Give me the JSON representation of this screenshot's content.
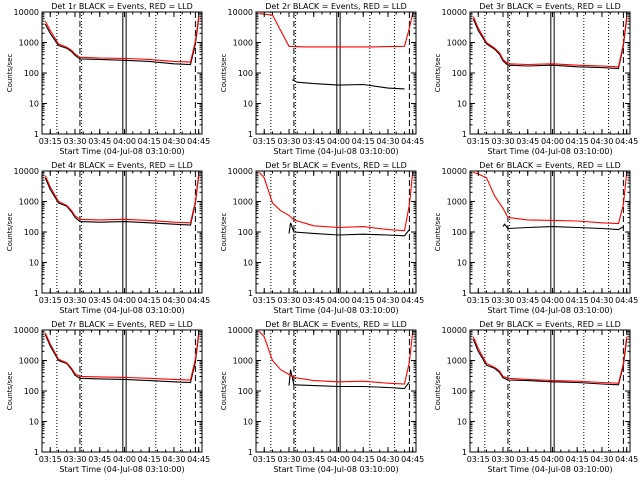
{
  "colors": {
    "background": "#ffffff",
    "events": "#000000",
    "lld": "#ff0000",
    "axes": "#000000"
  },
  "chart_data": [
    {
      "type": "line",
      "title": "Det 1r BLACK = Events, RED = LLD",
      "xlabel": "Start Time (04-Jul-08 03:10:00)",
      "ylabel": "Counts/sec",
      "y_scale": "log",
      "ylim": [
        1,
        10000
      ],
      "y_ticks": [
        "1",
        "10",
        "100",
        "1000",
        "10000"
      ],
      "x_ticks": [
        "03:15",
        "03:30",
        "03:45",
        "04:00",
        "04:15",
        "04:30",
        "04:45"
      ],
      "series": [
        {
          "name": "Events",
          "color": "#000000",
          "x": [
            "03:12",
            "03:15",
            "03:20",
            "03:25",
            "03:28",
            "03:30",
            "03:33",
            "03:45",
            "04:00",
            "04:15",
            "04:30",
            "04:40",
            "04:43",
            "04:45"
          ],
          "y": [
            4000,
            2000,
            800,
            650,
            500,
            380,
            290,
            280,
            260,
            240,
            200,
            190,
            900,
            6000
          ]
        },
        {
          "name": "LLD",
          "color": "#ff0000",
          "x": [
            "03:12",
            "03:15",
            "03:20",
            "03:25",
            "03:28",
            "03:30",
            "03:33",
            "03:45",
            "04:00",
            "04:15",
            "04:30",
            "04:40",
            "04:43",
            "04:45"
          ],
          "y": [
            5000,
            2500,
            900,
            700,
            550,
            420,
            330,
            310,
            300,
            280,
            240,
            230,
            1100,
            7000
          ]
        }
      ]
    },
    {
      "type": "line",
      "title": "Det 2r BLACK = Events, RED = LLD",
      "xlabel": "Start Time (04-Jul-08 03:10:00)",
      "ylabel": "Counts/sec",
      "y_scale": "log",
      "ylim": [
        1,
        10000
      ],
      "y_ticks": [
        "1",
        "10",
        "100",
        "1000",
        "10000"
      ],
      "x_ticks": [
        "03:15",
        "03:30",
        "03:45",
        "04:00",
        "04:15",
        "04:30",
        "04:45"
      ],
      "series": [
        {
          "name": "Events",
          "color": "#000000",
          "x": [
            "03:32",
            "03:35",
            "03:45",
            "04:00",
            "04:15",
            "04:30",
            "04:40"
          ],
          "y": [
            60,
            50,
            45,
            40,
            42,
            32,
            30
          ]
        },
        {
          "name": "LLD",
          "color": "#ff0000",
          "x": [
            "03:12",
            "03:15",
            "03:20",
            "03:30",
            "03:40",
            "04:00",
            "04:20",
            "04:40",
            "04:43",
            "04:45"
          ],
          "y": [
            9000,
            8500,
            8000,
            750,
            720,
            720,
            720,
            750,
            3000,
            9000
          ]
        }
      ]
    },
    {
      "type": "line",
      "title": "Det 3r BLACK = Events, RED = LLD",
      "xlabel": "Start Time (04-Jul-08 03:10:00)",
      "ylabel": "Counts/sec",
      "y_scale": "log",
      "ylim": [
        1,
        10000
      ],
      "y_ticks": [
        "1",
        "10",
        "100",
        "1000",
        "10000"
      ],
      "x_ticks": [
        "03:15",
        "03:30",
        "03:45",
        "04:00",
        "04:15",
        "04:30",
        "04:45"
      ],
      "series": [
        {
          "name": "Events",
          "color": "#000000",
          "x": [
            "03:12",
            "03:15",
            "03:20",
            "03:25",
            "03:28",
            "03:30",
            "03:33",
            "03:45",
            "04:00",
            "04:15",
            "04:30",
            "04:40",
            "04:43",
            "04:45"
          ],
          "y": [
            6000,
            2500,
            900,
            600,
            400,
            250,
            180,
            170,
            180,
            160,
            150,
            140,
            800,
            6000
          ]
        },
        {
          "name": "LLD",
          "color": "#ff0000",
          "x": [
            "03:12",
            "03:15",
            "03:20",
            "03:25",
            "03:28",
            "03:30",
            "03:33",
            "03:45",
            "04:00",
            "04:15",
            "04:30",
            "04:40",
            "04:43",
            "04:45"
          ],
          "y": [
            7000,
            3000,
            1000,
            650,
            450,
            280,
            200,
            190,
            200,
            180,
            170,
            160,
            900,
            7000
          ]
        }
      ]
    },
    {
      "type": "line",
      "title": "Det 4r BLACK = Events, RED = LLD",
      "xlabel": "Start Time (04-Jul-08 03:10:00)",
      "ylabel": "Counts/sec",
      "y_scale": "log",
      "ylim": [
        1,
        10000
      ],
      "y_ticks": [
        "1",
        "10",
        "100",
        "1000",
        "10000"
      ],
      "x_ticks": [
        "03:15",
        "03:30",
        "03:45",
        "04:00",
        "04:15",
        "04:30",
        "04:45"
      ],
      "series": [
        {
          "name": "Events",
          "color": "#000000",
          "x": [
            "03:12",
            "03:15",
            "03:20",
            "03:25",
            "03:28",
            "03:30",
            "03:33",
            "03:45",
            "04:00",
            "04:15",
            "04:30",
            "04:40",
            "04:43",
            "04:45"
          ],
          "y": [
            6000,
            2500,
            900,
            700,
            450,
            300,
            220,
            210,
            220,
            200,
            180,
            170,
            900,
            7000
          ]
        },
        {
          "name": "LLD",
          "color": "#ff0000",
          "x": [
            "03:12",
            "03:15",
            "03:20",
            "03:25",
            "03:28",
            "03:30",
            "03:33",
            "03:45",
            "04:00",
            "04:15",
            "04:30",
            "04:40",
            "04:43",
            "04:45"
          ],
          "y": [
            7000,
            3000,
            1000,
            750,
            500,
            340,
            260,
            250,
            260,
            240,
            210,
            200,
            1000,
            8000
          ]
        }
      ]
    },
    {
      "type": "line",
      "title": "Det 5r BLACK = Events, RED = LLD",
      "xlabel": "Start Time (04-Jul-08 03:10:00)",
      "ylabel": "Counts/sec",
      "y_scale": "log",
      "ylim": [
        1,
        10000
      ],
      "y_ticks": [
        "1",
        "10",
        "100",
        "1000",
        "10000"
      ],
      "x_ticks": [
        "03:15",
        "03:30",
        "03:45",
        "04:00",
        "04:15",
        "04:30",
        "04:45"
      ],
      "series": [
        {
          "name": "Events",
          "color": "#000000",
          "x": [
            "03:30",
            "03:31",
            "03:33",
            "03:45",
            "04:00",
            "04:15",
            "04:30",
            "04:40",
            "04:43"
          ],
          "y": [
            90,
            200,
            100,
            90,
            80,
            85,
            80,
            75,
            120
          ]
        },
        {
          "name": "LLD",
          "color": "#ff0000",
          "x": [
            "03:12",
            "03:15",
            "03:20",
            "03:25",
            "03:30",
            "03:33",
            "03:45",
            "04:00",
            "04:15",
            "04:30",
            "04:40",
            "04:43",
            "04:45"
          ],
          "y": [
            9000,
            6000,
            900,
            500,
            350,
            250,
            160,
            140,
            150,
            120,
            110,
            800,
            9000
          ]
        }
      ]
    },
    {
      "type": "line",
      "title": "Det 6r BLACK = Events, RED = LLD",
      "xlabel": "Start Time (04-Jul-08 03:10:00)",
      "ylabel": "Counts/sec",
      "y_scale": "log",
      "ylim": [
        1,
        10000
      ],
      "y_ticks": [
        "1",
        "10",
        "100",
        "1000",
        "10000"
      ],
      "x_ticks": [
        "03:15",
        "03:30",
        "03:45",
        "04:00",
        "04:15",
        "04:30",
        "04:45"
      ],
      "series": [
        {
          "name": "Events",
          "color": "#000000",
          "x": [
            "03:30",
            "03:31",
            "03:33",
            "03:45",
            "04:00",
            "04:15",
            "04:30",
            "04:40",
            "04:43"
          ],
          "y": [
            150,
            180,
            130,
            140,
            150,
            140,
            130,
            120,
            150
          ]
        },
        {
          "name": "LLD",
          "color": "#ff0000",
          "x": [
            "03:12",
            "03:15",
            "03:20",
            "03:25",
            "03:30",
            "03:33",
            "03:45",
            "04:00",
            "04:15",
            "04:30",
            "04:40",
            "04:43",
            "04:45"
          ],
          "y": [
            9000,
            8000,
            6000,
            1500,
            600,
            300,
            250,
            240,
            230,
            200,
            190,
            800,
            9000
          ]
        }
      ]
    },
    {
      "type": "line",
      "title": "Det 7r BLACK = Events, RED = LLD",
      "xlabel": "Start Time (04-Jul-08 03:10:00)",
      "ylabel": "Counts/sec",
      "y_scale": "log",
      "ylim": [
        1,
        10000
      ],
      "y_ticks": [
        "1",
        "10",
        "100",
        "1000",
        "10000"
      ],
      "x_ticks": [
        "03:15",
        "03:30",
        "03:45",
        "04:00",
        "04:15",
        "04:30",
        "04:45"
      ],
      "series": [
        {
          "name": "Events",
          "color": "#000000",
          "x": [
            "03:12",
            "03:15",
            "03:20",
            "03:25",
            "03:28",
            "03:30",
            "03:33",
            "03:45",
            "04:00",
            "04:15",
            "04:30",
            "04:40",
            "04:43",
            "04:45"
          ],
          "y": [
            7000,
            3000,
            1000,
            800,
            500,
            330,
            260,
            250,
            240,
            220,
            200,
            190,
            900,
            7000
          ]
        },
        {
          "name": "LLD",
          "color": "#ff0000",
          "x": [
            "03:12",
            "03:15",
            "03:20",
            "03:25",
            "03:28",
            "03:30",
            "03:33",
            "03:45",
            "04:00",
            "04:15",
            "04:30",
            "04:40",
            "04:43",
            "04:45"
          ],
          "y": [
            8000,
            3500,
            1100,
            850,
            550,
            370,
            300,
            290,
            280,
            260,
            240,
            230,
            1100,
            8000
          ]
        }
      ]
    },
    {
      "type": "line",
      "title": "Det 8r BLACK = Events, RED = LLD",
      "xlabel": "Start Time (04-Jul-08 03:10:00)",
      "ylabel": "Counts/sec",
      "y_scale": "log",
      "ylim": [
        1,
        10000
      ],
      "y_ticks": [
        "1",
        "10",
        "100",
        "1000",
        "10000"
      ],
      "x_ticks": [
        "03:15",
        "03:30",
        "03:45",
        "04:00",
        "04:15",
        "04:30",
        "04:45"
      ],
      "series": [
        {
          "name": "Events",
          "color": "#000000",
          "x": [
            "03:30",
            "03:31",
            "03:33",
            "03:45",
            "04:00",
            "04:15",
            "04:30",
            "04:40",
            "04:43"
          ],
          "y": [
            150,
            500,
            160,
            150,
            140,
            140,
            130,
            120,
            200
          ]
        },
        {
          "name": "LLD",
          "color": "#ff0000",
          "x": [
            "03:12",
            "03:15",
            "03:20",
            "03:25",
            "03:30",
            "03:33",
            "03:45",
            "04:00",
            "04:15",
            "04:30",
            "04:40",
            "04:43",
            "04:45"
          ],
          "y": [
            9000,
            6000,
            1000,
            500,
            350,
            280,
            220,
            200,
            210,
            180,
            170,
            900,
            9000
          ]
        }
      ]
    },
    {
      "type": "line",
      "title": "Det 9r BLACK = Events, RED = LLD",
      "xlabel": "Start Time (04-Jul-08 03:10:00)",
      "ylabel": "Counts/sec",
      "y_scale": "log",
      "ylim": [
        1,
        10000
      ],
      "y_ticks": [
        "1",
        "10",
        "100",
        "1000",
        "10000"
      ],
      "x_ticks": [
        "03:15",
        "03:30",
        "03:45",
        "04:00",
        "04:15",
        "04:30",
        "04:45"
      ],
      "series": [
        {
          "name": "Events",
          "color": "#000000",
          "x": [
            "03:12",
            "03:15",
            "03:20",
            "03:25",
            "03:28",
            "03:30",
            "03:33",
            "03:45",
            "04:00",
            "04:15",
            "04:30",
            "04:40",
            "04:43",
            "04:45"
          ],
          "y": [
            5000,
            2000,
            700,
            550,
            400,
            270,
            230,
            220,
            200,
            190,
            170,
            160,
            700,
            5000
          ]
        },
        {
          "name": "LLD",
          "color": "#ff0000",
          "x": [
            "03:12",
            "03:15",
            "03:20",
            "03:25",
            "03:28",
            "03:30",
            "03:33",
            "03:45",
            "04:00",
            "04:15",
            "04:30",
            "04:40",
            "04:43",
            "04:45"
          ],
          "y": [
            6000,
            2500,
            800,
            600,
            450,
            300,
            260,
            240,
            220,
            210,
            190,
            180,
            800,
            6000
          ]
        }
      ]
    }
  ]
}
